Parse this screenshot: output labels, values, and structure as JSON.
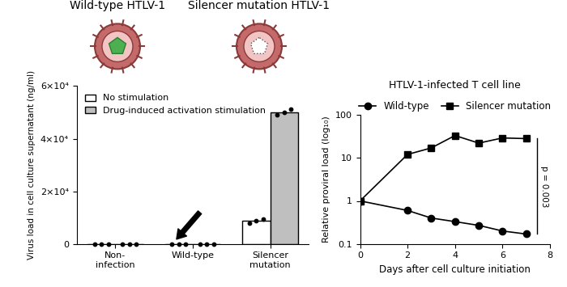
{
  "header": {
    "labels": [
      "Wild-type HTLV-1",
      "Silencer mutation HTLV-1"
    ]
  },
  "chart_data": [
    {
      "type": "bar",
      "y_label": "Virus load in cell culture supernatant (ng/ml)",
      "categories": [
        "Non-\ninfection",
        "Wild-type",
        "Silencer\nmutation"
      ],
      "series": [
        {
          "name": "No stimulation",
          "color": "#ffffff",
          "values": [
            0,
            0,
            8700
          ],
          "replicates": [
            [
              0,
              0,
              0
            ],
            [
              0,
              0,
              0
            ],
            [
              8000,
              8700,
              9400
            ]
          ]
        },
        {
          "name": "Drug-induced activation stimulation",
          "color": "#bfbfbf",
          "values": [
            0,
            0,
            50000
          ],
          "replicates": [
            [
              0,
              0,
              0
            ],
            [
              0,
              0,
              0
            ],
            [
              49000,
              50000,
              51200
            ]
          ]
        }
      ],
      "ylim": [
        0,
        60000
      ],
      "yticks": [
        0,
        {
          "value": 20000,
          "label": "2×10⁴"
        },
        {
          "value": 40000,
          "label": "4×10⁴"
        },
        {
          "value": 60000,
          "label": "6×10⁴"
        }
      ],
      "legend": "upper left"
    },
    {
      "type": "line",
      "title": "HTLV-1-infected T cell line",
      "x_label": "Days after cell culture initiation",
      "y_label": "Relative proviral load (log₁₀)",
      "x": [
        0,
        2,
        3,
        4,
        5,
        6,
        7
      ],
      "series": [
        {
          "name": "Wild-type",
          "color": "#000000",
          "marker": "circle",
          "values": [
            1,
            0.6,
            0.4,
            0.33,
            0.27,
            0.2,
            0.17
          ]
        },
        {
          "name": "Silencer mutation",
          "color": "#000000",
          "marker": "square",
          "values": [
            1,
            12,
            17,
            33,
            22,
            29,
            28
          ]
        }
      ],
      "xlim": [
        0,
        8
      ],
      "xticks": [
        0,
        2,
        4,
        6,
        8
      ],
      "ylim": [
        0.1,
        100
      ],
      "yticks": [
        0.1,
        1,
        10,
        100
      ],
      "log": "y",
      "legend": "upper center",
      "annotation": "p = 0.003"
    }
  ]
}
